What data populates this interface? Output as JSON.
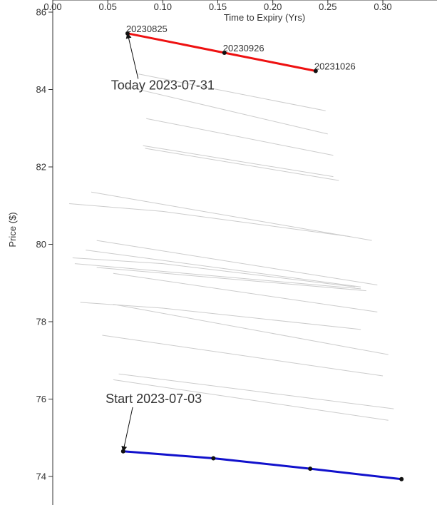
{
  "chart_data": {
    "type": "line",
    "xlabel": "Time to Expiry (Yrs)",
    "ylabel": "Price ($)",
    "xlim": [
      0.0,
      0.32
    ],
    "ylim": [
      73.8,
      86.0
    ],
    "x_ticks": [
      "0.00",
      "0.05",
      "0.10",
      "0.15",
      "0.20",
      "0.25",
      "0.30"
    ],
    "y_ticks": [
      "74",
      "76",
      "78",
      "80",
      "82",
      "84",
      "86"
    ],
    "x_axis_position": "top",
    "grid": false,
    "colors": {
      "today": "#ee1111",
      "start": "#1111cc",
      "history": "#cccccc",
      "axis": "#333333"
    },
    "today_series": {
      "x": [
        0.068,
        0.156,
        0.239
      ],
      "y": [
        85.45,
        84.95,
        84.48
      ],
      "labels": [
        "20230825",
        "20230926",
        "20231026"
      ]
    },
    "start_series": {
      "x": [
        0.064,
        0.146,
        0.234,
        0.317
      ],
      "y": [
        74.65,
        74.47,
        74.2,
        73.93
      ]
    },
    "history_series": [
      {
        "x": [
          0.078,
          0.248
        ],
        "y": [
          84.4,
          83.45
        ]
      },
      {
        "x": [
          0.063,
          0.25
        ],
        "y": [
          84.1,
          82.85
        ]
      },
      {
        "x": [
          0.085,
          0.255
        ],
        "y": [
          83.25,
          82.3
        ]
      },
      {
        "x": [
          0.082,
          0.255
        ],
        "y": [
          82.55,
          81.75
        ]
      },
      {
        "x": [
          0.084,
          0.26
        ],
        "y": [
          82.48,
          81.65
        ]
      },
      {
        "x": [
          0.035,
          0.29
        ],
        "y": [
          81.35,
          80.1
        ]
      },
      {
        "x": [
          0.015,
          0.1,
          0.27
        ],
        "y": [
          81.05,
          80.85,
          80.2
        ]
      },
      {
        "x": [
          0.04,
          0.295
        ],
        "y": [
          80.1,
          78.95
        ]
      },
      {
        "x": [
          0.03,
          0.28
        ],
        "y": [
          79.85,
          78.9
        ]
      },
      {
        "x": [
          0.018,
          0.1,
          0.275
        ],
        "y": [
          79.65,
          79.5,
          78.9
        ]
      },
      {
        "x": [
          0.02,
          0.28
        ],
        "y": [
          79.5,
          78.85
        ]
      },
      {
        "x": [
          0.04,
          0.285
        ],
        "y": [
          79.4,
          78.8
        ]
      },
      {
        "x": [
          0.055,
          0.295
        ],
        "y": [
          79.25,
          78.25
        ]
      },
      {
        "x": [
          0.025,
          0.1,
          0.28
        ],
        "y": [
          78.5,
          78.35,
          77.8
        ]
      },
      {
        "x": [
          0.055,
          0.305
        ],
        "y": [
          78.45,
          77.15
        ]
      },
      {
        "x": [
          0.045,
          0.3
        ],
        "y": [
          77.65,
          76.6
        ]
      },
      {
        "x": [
          0.06,
          0.31
        ],
        "y": [
          76.65,
          75.75
        ]
      },
      {
        "x": [
          0.055,
          0.305
        ],
        "y": [
          76.5,
          75.45
        ]
      }
    ],
    "annotations": [
      {
        "text": "Today 2023-07-31",
        "target_x": 0.068,
        "target_y": 85.45,
        "text_x": 0.053,
        "text_y": 84.0
      },
      {
        "text": "Start 2023-07-03",
        "target_x": 0.064,
        "target_y": 74.65,
        "text_x": 0.048,
        "text_y": 75.9
      }
    ]
  }
}
